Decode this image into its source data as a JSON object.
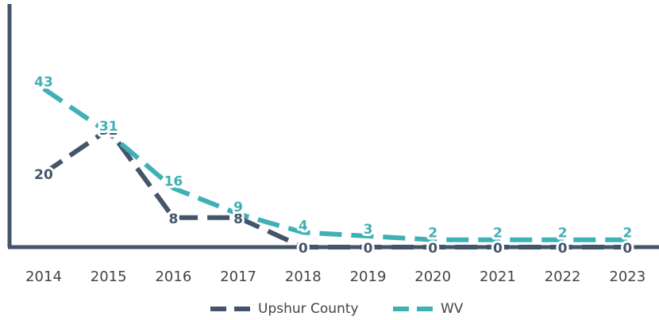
{
  "chart_data": {
    "type": "line",
    "categories": [
      "2014",
      "2015",
      "2016",
      "2017",
      "2018",
      "2019",
      "2020",
      "2021",
      "2022",
      "2023"
    ],
    "series": [
      {
        "name": "Upshur County",
        "color": "#44546a",
        "values": [
          20,
          32,
          8,
          8,
          0,
          0,
          0,
          0,
          0,
          0
        ]
      },
      {
        "name": "WV",
        "color": "#3fb1b5",
        "values": [
          43,
          31,
          16,
          9,
          4,
          3,
          2,
          2,
          2,
          2
        ]
      }
    ],
    "ylim": [
      0,
      66
    ],
    "legend": "bottom"
  }
}
